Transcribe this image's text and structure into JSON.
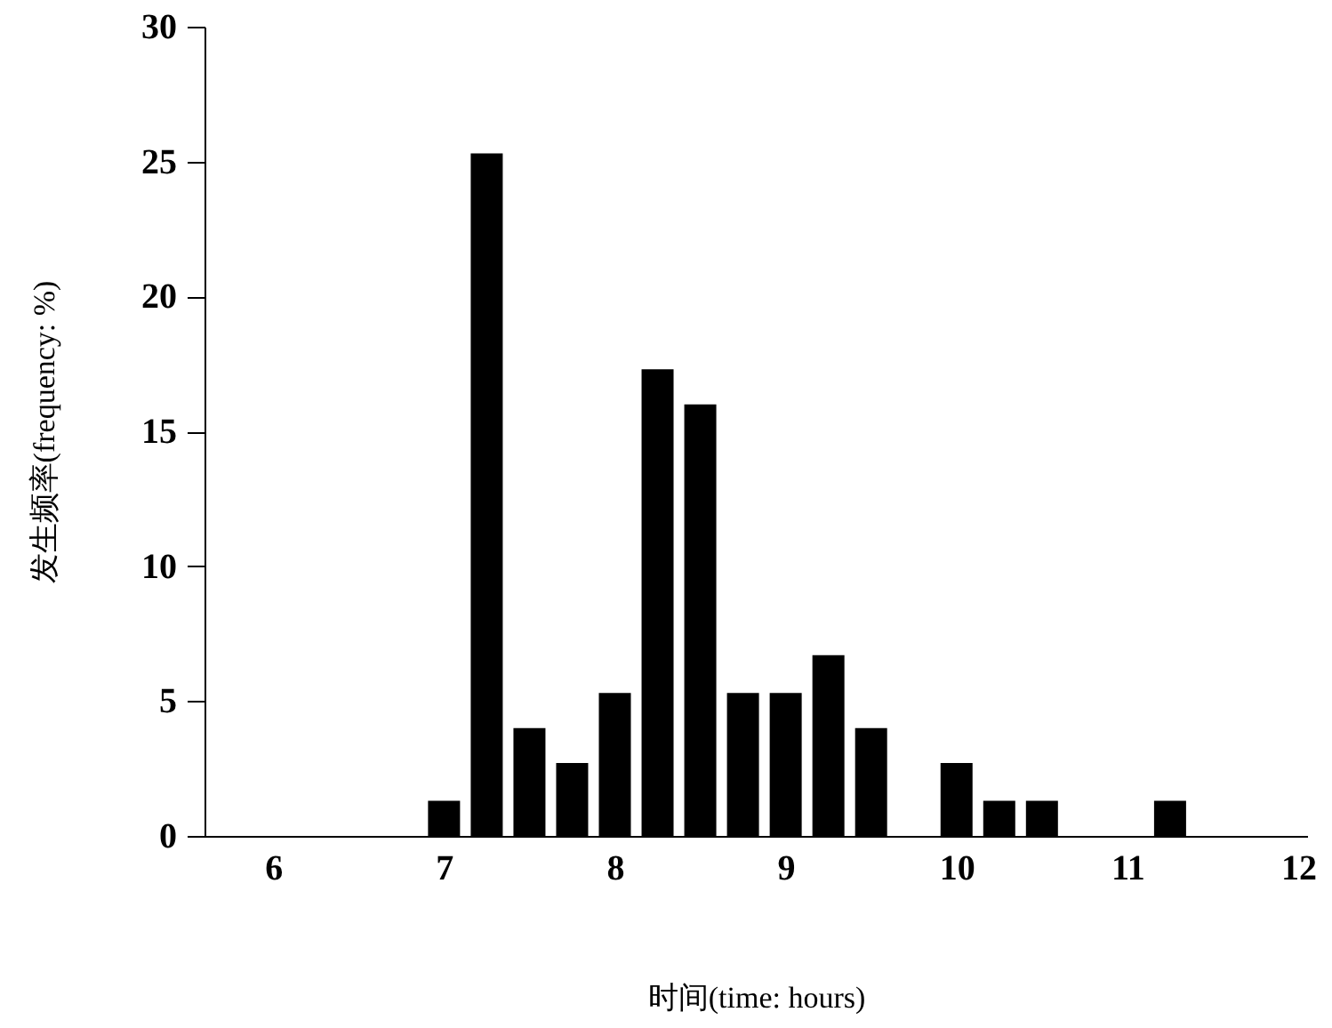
{
  "chart_data": {
    "type": "bar",
    "xlabel": "时间(time: hours)",
    "ylabel": "发生频率(frequency: %)",
    "x": [
      7,
      7.25,
      7.5,
      7.75,
      8,
      8.25,
      8.5,
      8.75,
      9,
      9.25,
      9.5,
      10,
      10.25,
      10.5,
      11.25
    ],
    "values": [
      1.3,
      25.3,
      4,
      2.7,
      5.3,
      17.3,
      16,
      5.3,
      5.3,
      6.7,
      4,
      2.7,
      1.3,
      1.3,
      1.3
    ],
    "color": "#000000",
    "xlim": [
      5.65,
      12
    ],
    "xticks": [
      6,
      7,
      8,
      9,
      10,
      11,
      12
    ],
    "ylim": [
      0,
      30
    ],
    "yticks": [
      0,
      5,
      10,
      15,
      20,
      25,
      30
    ],
    "grid": false
  }
}
